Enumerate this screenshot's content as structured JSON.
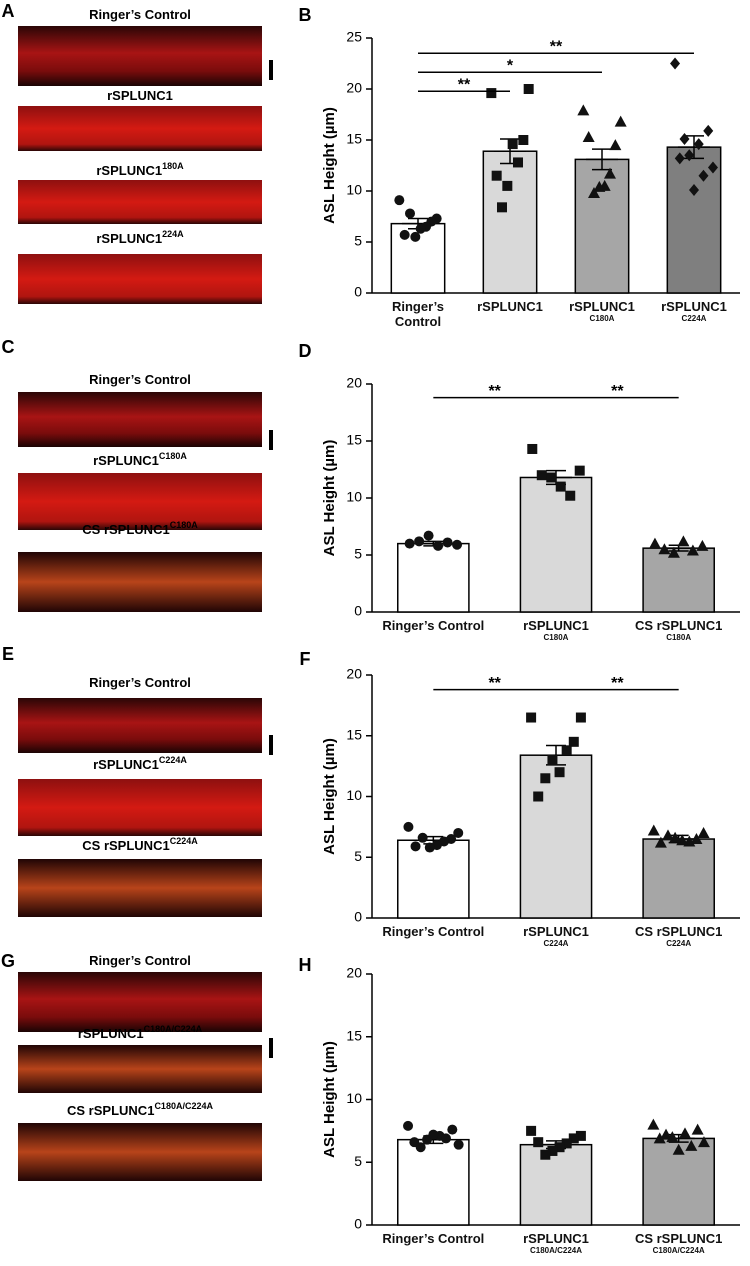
{
  "image_panels": [
    {
      "panel": "A",
      "labels": [
        {
          "text": "Ringer’s Control"
        },
        {
          "text": "rSPLUNC1"
        },
        {
          "text": "rSPLUNC1",
          "sup": "180A"
        },
        {
          "text": "rSPLUNC1",
          "sup": "224A"
        }
      ]
    },
    {
      "panel": "C",
      "labels": [
        {
          "text": "Ringer’s Control"
        },
        {
          "text": "rSPLUNC1",
          "sup": "C180A"
        },
        {
          "text": "CS rSPLUNC1",
          "sup": "C180A"
        }
      ]
    },
    {
      "panel": "E",
      "labels": [
        {
          "text": "Ringer’s Control"
        },
        {
          "text": "rSPLUNC1",
          "sup": "C224A"
        },
        {
          "text": "CS rSPLUNC1",
          "sup": "C224A"
        }
      ]
    },
    {
      "panel": "G",
      "labels": [
        {
          "text": "Ringer’s Control"
        },
        {
          "text": "rSPLUNC1",
          "sup": "C180A/C224A"
        },
        {
          "text": "CS rSPLUNC1",
          "sup": "C180A/C224A"
        }
      ]
    }
  ],
  "chart_data": [
    {
      "type": "bar",
      "panel": "B",
      "ylabel": "ASL Height (µm)",
      "categories": [
        "Ringer’s Control",
        "rSPLUNC1",
        "rSPLUNC1",
        "rSPLUNC1"
      ],
      "category_notes": [
        null,
        null,
        "C180A",
        "C224A"
      ],
      "values": [
        6.8,
        13.9,
        13.1,
        14.3
      ],
      "errors": [
        0.5,
        1.2,
        1.0,
        1.1
      ],
      "points": [
        [
          9.1,
          7.3,
          7.0,
          6.5,
          6.3,
          5.5,
          7.8,
          5.7
        ],
        [
          19.6,
          20.0,
          15.0,
          12.8,
          14.6,
          10.5,
          8.4,
          11.5
        ],
        [
          17.9,
          16.8,
          14.5,
          11.7,
          10.5,
          10.4,
          9.8,
          15.3
        ],
        [
          22.5,
          15.9,
          14.6,
          13.5,
          13.2,
          12.3,
          11.5,
          10.1,
          15.1
        ]
      ],
      "colors": [
        "#ffffff",
        "#d9d9d9",
        "#a6a6a6",
        "#7f7f7f"
      ],
      "markers": [
        "circle",
        "square",
        "triangle",
        "diamond"
      ],
      "ylim": [
        0,
        25
      ],
      "yticks": [
        0,
        5,
        10,
        15,
        20,
        25
      ],
      "annotations": [
        {
          "text": "**",
          "from": 0,
          "to": 3
        },
        {
          "text": "*",
          "from": 0,
          "to": 2
        },
        {
          "text": "**",
          "from": 0,
          "to": 1
        }
      ]
    },
    {
      "type": "bar",
      "panel": "D",
      "ylabel": "ASL Height (µm)",
      "categories": [
        "Ringer’s Control",
        "rSPLUNC1",
        "CS rSPLUNC1"
      ],
      "category_notes": [
        null,
        "C180A",
        "C180A"
      ],
      "values": [
        6.0,
        11.8,
        5.6
      ],
      "errors": [
        0.2,
        0.6,
        0.25
      ],
      "points": [
        [
          6.0,
          6.2,
          6.7,
          5.8,
          6.1,
          5.9
        ],
        [
          14.3,
          12.0,
          11.8,
          11.0,
          10.2,
          12.4
        ],
        [
          6.0,
          5.5,
          5.2,
          6.2,
          5.4,
          5.8
        ]
      ],
      "colors": [
        "#ffffff",
        "#d9d9d9",
        "#a6a6a6"
      ],
      "markers": [
        "circle",
        "square",
        "triangle"
      ],
      "ylim": [
        0,
        20
      ],
      "yticks": [
        0,
        5,
        10,
        15,
        20
      ],
      "annotations": [
        {
          "text": "**",
          "from": 0,
          "to": 1
        },
        {
          "text": "**",
          "from": 1,
          "to": 2
        }
      ]
    },
    {
      "type": "bar",
      "panel": "F",
      "ylabel": "ASL Height (µm)",
      "categories": [
        "Ringer’s Control",
        "rSPLUNC1",
        "CS rSPLUNC1"
      ],
      "category_notes": [
        null,
        "C224A",
        "C224A"
      ],
      "values": [
        6.4,
        13.4,
        6.5
      ],
      "errors": [
        0.3,
        0.8,
        0.3
      ],
      "points": [
        [
          7.5,
          7.0,
          6.5,
          6.3,
          6.0,
          5.8,
          6.6,
          5.9
        ],
        [
          16.5,
          16.5,
          14.5,
          13.8,
          12.0,
          13.0,
          11.5,
          10.0
        ],
        [
          7.2,
          7.0,
          6.5,
          6.3,
          6.4,
          6.6,
          6.8,
          6.2
        ]
      ],
      "colors": [
        "#ffffff",
        "#d9d9d9",
        "#a6a6a6"
      ],
      "markers": [
        "circle",
        "square",
        "triangle"
      ],
      "ylim": [
        0,
        20
      ],
      "yticks": [
        0,
        5,
        10,
        15,
        20
      ],
      "annotations": [
        {
          "text": "**",
          "from": 0,
          "to": 1
        },
        {
          "text": "**",
          "from": 1,
          "to": 2
        }
      ]
    },
    {
      "type": "bar",
      "panel": "H",
      "ylabel": "ASL Height (µm)",
      "categories": [
        "Ringer’s Control",
        "rSPLUNC1",
        "CS rSPLUNC1"
      ],
      "category_notes": [
        null,
        "C180A/C224A",
        "C180A/C224A"
      ],
      "values": [
        6.8,
        6.4,
        6.9
      ],
      "errors": [
        0.3,
        0.3,
        0.3
      ],
      "points": [
        [
          7.9,
          7.6,
          7.1,
          6.8,
          6.6,
          6.4,
          6.9,
          7.2,
          6.2
        ],
        [
          7.5,
          7.1,
          6.9,
          6.5,
          6.2,
          5.9,
          5.6,
          6.6
        ],
        [
          8.0,
          7.6,
          7.3,
          7.0,
          6.9,
          6.6,
          6.3,
          6.0,
          7.2
        ]
      ],
      "colors": [
        "#ffffff",
        "#d9d9d9",
        "#a6a6a6"
      ],
      "markers": [
        "circle",
        "square",
        "triangle"
      ],
      "ylim": [
        0,
        20
      ],
      "yticks": [
        0,
        5,
        10,
        15,
        20
      ],
      "annotations": []
    }
  ]
}
